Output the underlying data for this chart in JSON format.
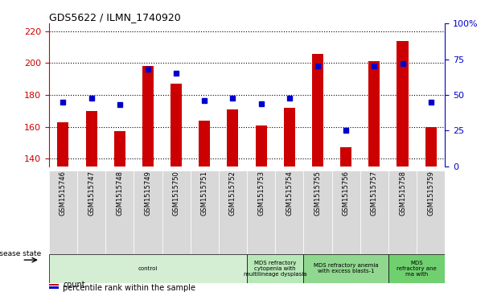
{
  "title": "GDS5622 / ILMN_1740920",
  "samples": [
    "GSM1515746",
    "GSM1515747",
    "GSM1515748",
    "GSM1515749",
    "GSM1515750",
    "GSM1515751",
    "GSM1515752",
    "GSM1515753",
    "GSM1515754",
    "GSM1515755",
    "GSM1515756",
    "GSM1515757",
    "GSM1515758",
    "GSM1515759"
  ],
  "count_values": [
    163,
    170,
    157,
    198,
    187,
    164,
    171,
    161,
    172,
    206,
    147,
    201,
    214,
    160
  ],
  "percentile_values": [
    45,
    48,
    43,
    68,
    65,
    46,
    48,
    44,
    48,
    70,
    25,
    70,
    72,
    45
  ],
  "ylim_left": [
    135,
    225
  ],
  "ylim_right": [
    0,
    100
  ],
  "yticks_left": [
    140,
    160,
    180,
    200,
    220
  ],
  "yticks_right": [
    0,
    25,
    50,
    75,
    100
  ],
  "bar_color": "#CC0000",
  "dot_color": "#0000CC",
  "bar_bottom": 135,
  "disease_groups": [
    {
      "label": "control",
      "start": 0,
      "end": 7,
      "color": "#d4eed4"
    },
    {
      "label": "MDS refractory\ncytopenia with\nmultilineage dysplasia",
      "start": 7,
      "end": 9,
      "color": "#b8e8b8"
    },
    {
      "label": "MDS refractory anemia\nwith excess blasts-1",
      "start": 9,
      "end": 12,
      "color": "#90d890"
    },
    {
      "label": "MDS\nrefractory ane\nma with",
      "start": 12,
      "end": 14,
      "color": "#70d070"
    }
  ],
  "disease_state_label": "disease state",
  "legend_count_label": "count",
  "legend_percentile_label": "percentile rank within the sample",
  "left_axis_color": "#CC0000",
  "right_axis_color": "#0000CC",
  "xtick_bg_color": "#d8d8d8",
  "fig_width": 6.08,
  "fig_height": 3.63,
  "dpi": 100
}
